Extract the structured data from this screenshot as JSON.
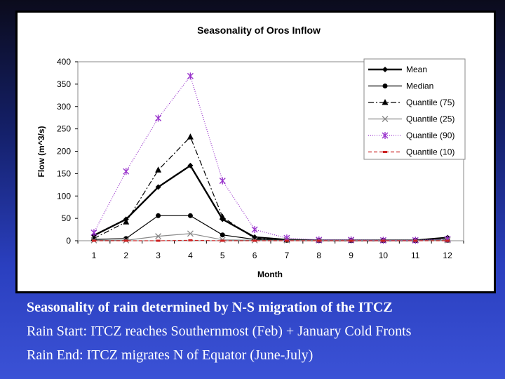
{
  "chart_data": {
    "type": "line",
    "title": "Seasonality of Oros Inflow",
    "xlabel": "Month",
    "ylabel": "Flow (m^3/s)",
    "x": [
      1,
      2,
      3,
      4,
      5,
      6,
      7,
      8,
      9,
      10,
      11,
      12
    ],
    "ylim": [
      0,
      400
    ],
    "yticks": [
      0,
      50,
      100,
      150,
      200,
      250,
      300,
      350,
      400
    ],
    "grid": false,
    "legend": "top-right",
    "series": [
      {
        "name": "Mean",
        "values": [
          12,
          48,
          120,
          168,
          48,
          8,
          2,
          1,
          1,
          1,
          1,
          7
        ],
        "color": "#000000",
        "line": "solid-thick",
        "marker": "diamond"
      },
      {
        "name": "Median",
        "values": [
          3,
          5,
          56,
          56,
          13,
          3,
          1,
          1,
          1,
          1,
          1,
          1
        ],
        "color": "#000000",
        "line": "solid",
        "marker": "circle"
      },
      {
        "name": "Quantile (75)",
        "values": [
          5,
          42,
          158,
          232,
          53,
          5,
          2,
          1,
          1,
          1,
          1,
          2
        ],
        "color": "#000000",
        "line": "dashdot",
        "marker": "triangle"
      },
      {
        "name": "Quantile (25)",
        "values": [
          1,
          1,
          10,
          16,
          2,
          1,
          1,
          1,
          1,
          1,
          1,
          1
        ],
        "color": "#888888",
        "line": "solid",
        "marker": "x"
      },
      {
        "name": "Quantile (90)",
        "values": [
          18,
          155,
          274,
          368,
          134,
          25,
          6,
          2,
          2,
          1,
          1,
          4
        ],
        "color": "#9933cc",
        "line": "dotted",
        "marker": "star"
      },
      {
        "name": "Quantile (10)",
        "values": [
          0,
          0,
          0,
          1,
          0,
          0,
          0,
          0,
          0,
          0,
          0,
          0
        ],
        "color": "#cc2222",
        "line": "dashed",
        "marker": "dash"
      }
    ]
  },
  "captions": {
    "line1": "Seasonality of rain determined by N-S migration of the ITCZ",
    "line2": "Rain Start: ITCZ reaches Southernmost (Feb) + January Cold Fronts",
    "line3": "Rain End: ITCZ migrates N of Equator (June-July)"
  }
}
